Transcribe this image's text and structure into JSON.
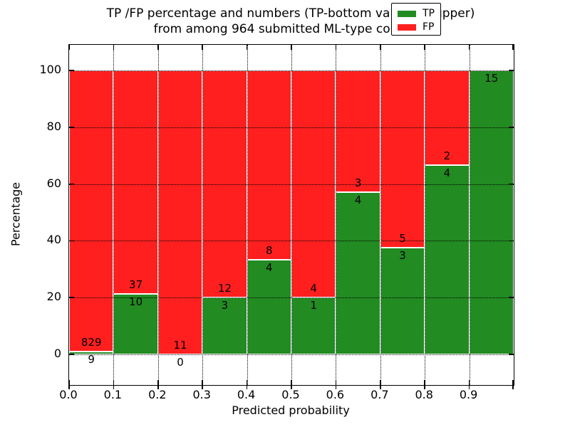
{
  "title": {
    "line1": "TP /FP percentage and numbers (TP-bottom value, FP-upper)",
    "line2": "from among 964 submitted ML-type contacts"
  },
  "axes": {
    "xlabel": "Predicted probability",
    "ylabel": "Percentage",
    "x_tick_labels": [
      "0.0",
      "0.1",
      "0.2",
      "0.3",
      "0.4",
      "0.5",
      "0.6",
      "0.7",
      "0.8",
      "0.9"
    ],
    "y_tick_labels": [
      "0",
      "20",
      "40",
      "60",
      "80",
      "100"
    ]
  },
  "legend": {
    "items": [
      {
        "label": "TP",
        "color": "#228b22"
      },
      {
        "label": "FP",
        "color": "#ff1f1f"
      }
    ]
  },
  "colors": {
    "tp": "#228b22",
    "fp": "#ff1f1f",
    "grid": "#000000",
    "background": "#ffffff"
  },
  "chart_data": {
    "type": "bar",
    "stacked": true,
    "normalized_to_percent": true,
    "title": "TP /FP percentage and numbers (TP-bottom value, FP-upper) from among 964 submitted ML-type contacts",
    "xlabel": "Predicted probability",
    "ylabel": "Percentage",
    "bins": [
      "0.0-0.1",
      "0.1-0.2",
      "0.2-0.3",
      "0.3-0.4",
      "0.4-0.5",
      "0.5-0.6",
      "0.6-0.7",
      "0.7-0.8",
      "0.8-0.9",
      "0.9-1.0"
    ],
    "series": [
      {
        "name": "TP",
        "color": "#228b22",
        "values": [
          9,
          10,
          0,
          3,
          4,
          1,
          4,
          3,
          4,
          15
        ]
      },
      {
        "name": "FP",
        "color": "#ff1f1f",
        "values": [
          829,
          37,
          11,
          12,
          8,
          4,
          3,
          5,
          2,
          0
        ]
      }
    ],
    "tp_percent": [
      1.07,
      21.28,
      0,
      20,
      33.33,
      20,
      57.14,
      37.5,
      66.67,
      100
    ],
    "total_contacts": 964,
    "ylim": [
      -11,
      109
    ],
    "xlim": [
      0.0,
      1.0
    ],
    "y_ticks": [
      0,
      20,
      40,
      60,
      80,
      100
    ],
    "grid": "dotted",
    "legend_position": "upper right"
  },
  "bar_labels": {
    "tp": [
      "9",
      "10",
      "0",
      "3",
      "4",
      "1",
      "4",
      "3",
      "4",
      "15"
    ],
    "fp": [
      "829",
      "37",
      "11",
      "12",
      "8",
      "4",
      "3",
      "5",
      "2",
      ""
    ]
  }
}
